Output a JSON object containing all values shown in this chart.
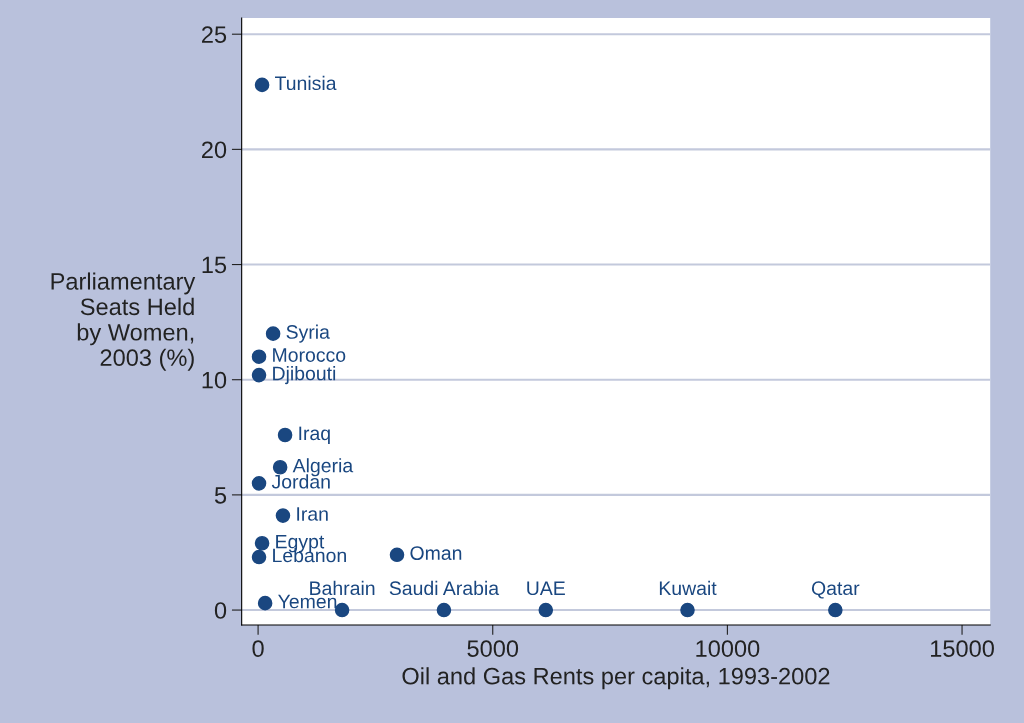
{
  "chart_data": {
    "type": "scatter",
    "xlabel": "Oil and Gas Rents per capita, 1993-2002",
    "ylabel": "Parliamentary\nSeats Held\nby Women,\n2003 (%)",
    "x": [
      85,
      320,
      20,
      20,
      575,
      470,
      20,
      530,
      85,
      20,
      2960,
      150,
      1790,
      3960,
      6130,
      9150,
      12300
    ],
    "series": [
      {
        "color": "#1a4780",
        "values": [
          22.8,
          12.0,
          11.0,
          10.2,
          7.6,
          6.2,
          5.5,
          4.1,
          2.9,
          2.3,
          2.4,
          0.3,
          0,
          0,
          0,
          0,
          0
        ]
      }
    ],
    "annotations": [
      {
        "text": "Tunisia",
        "x": 85,
        "y": 22.8
      },
      {
        "text": "Syria",
        "x": 320,
        "y": 12.0
      },
      {
        "text": "Morocco",
        "x": 20,
        "y": 11.0
      },
      {
        "text": "Djibouti",
        "x": 20,
        "y": 10.2
      },
      {
        "text": "Iraq",
        "x": 575,
        "y": 7.6
      },
      {
        "text": "Algeria",
        "x": 470,
        "y": 6.2
      },
      {
        "text": "Jordan",
        "x": 20,
        "y": 5.5
      },
      {
        "text": "Iran",
        "x": 530,
        "y": 4.1
      },
      {
        "text": "Egypt",
        "x": 85,
        "y": 2.9
      },
      {
        "text": "Lebanon",
        "x": 20,
        "y": 2.3
      },
      {
        "text": "Oman",
        "x": 2960,
        "y": 2.4
      },
      {
        "text": "Yemen",
        "x": 150,
        "y": 0.3
      },
      {
        "text": "Bahrain",
        "x": 1790,
        "y": 0
      },
      {
        "text": "Saudi Arabia",
        "x": 3960,
        "y": 0
      },
      {
        "text": "UAE",
        "x": 6130,
        "y": 0
      },
      {
        "text": "Kuwait",
        "x": 9150,
        "y": 0
      },
      {
        "text": "Qatar",
        "x": 12300,
        "y": 0
      }
    ],
    "xlim": [
      -350,
      15600
    ],
    "ylim": [
      -0.65,
      25.7
    ],
    "xticks": [
      0,
      5000,
      10000,
      15000
    ],
    "yticks": [
      0,
      5,
      10,
      15,
      20,
      25
    ],
    "grid": "y",
    "marker": "circle"
  }
}
